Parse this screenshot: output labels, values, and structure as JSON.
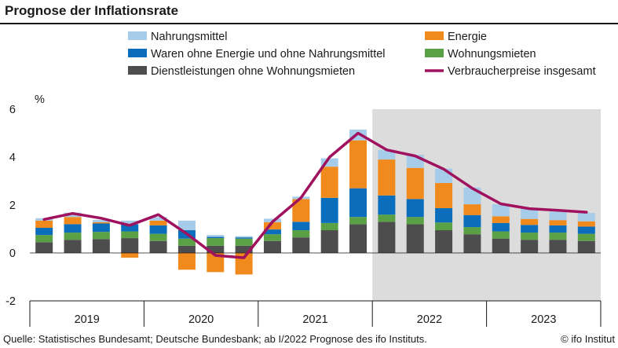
{
  "title": "Prognose der Inflationsrate",
  "footer": {
    "source": "Quelle: Statistisches Bundesamt; Deutsche Bundesbank; ab I/2022 Prognose des ifo Instituts.",
    "brand": "© ifo Institut"
  },
  "chart_data": {
    "type": "bar",
    "stacked": true,
    "unit_label": "%",
    "ylim": [
      -2,
      6
    ],
    "yticks": [
      -2,
      0,
      2,
      4,
      6
    ],
    "grid": false,
    "legend_position": "top",
    "categories": [
      "I/2019",
      "II/2019",
      "III/2019",
      "IV/2019",
      "I/2020",
      "II/2020",
      "III/2020",
      "IV/2020",
      "I/2021",
      "II/2021",
      "III/2021",
      "IV/2021",
      "I/2022",
      "II/2022",
      "III/2022",
      "IV/2022",
      "I/2023",
      "II/2023",
      "III/2023",
      "IV/2023"
    ],
    "year_labels": [
      "2019",
      "2020",
      "2021",
      "2022",
      "2023"
    ],
    "forecast_shading": {
      "from": "I/2022",
      "color": "#dcdcdc"
    },
    "bar_series": [
      {
        "name": "Dienstleistungen ohne Wohnungsmieten",
        "color": "#4d4d4d",
        "values": [
          0.45,
          0.55,
          0.58,
          0.62,
          0.5,
          0.3,
          0.3,
          0.3,
          0.5,
          0.65,
          0.95,
          1.2,
          1.3,
          1.2,
          0.95,
          0.78,
          0.6,
          0.55,
          0.55,
          0.5
        ]
      },
      {
        "name": "Wohnungsmieten",
        "color": "#5aa045",
        "values": [
          0.3,
          0.3,
          0.3,
          0.28,
          0.3,
          0.3,
          0.32,
          0.3,
          0.28,
          0.3,
          0.3,
          0.3,
          0.3,
          0.3,
          0.32,
          0.3,
          0.3,
          0.3,
          0.3,
          0.3
        ]
      },
      {
        "name": "Waren ohne Energie und ohne Nahrungsmittel",
        "color": "#0a6ebd",
        "values": [
          0.3,
          0.35,
          0.35,
          0.3,
          0.35,
          0.35,
          0.05,
          0.05,
          0.2,
          0.35,
          1.05,
          1.2,
          0.8,
          0.75,
          0.6,
          0.5,
          0.35,
          0.32,
          0.3,
          0.3
        ]
      },
      {
        "name": "Energie",
        "color": "#f08a1c",
        "values": [
          0.3,
          0.3,
          0.05,
          -0.2,
          0.2,
          -0.7,
          -0.8,
          -0.9,
          0.3,
          0.95,
          1.3,
          2.0,
          1.5,
          1.3,
          1.05,
          0.45,
          0.28,
          0.25,
          0.22,
          0.22
        ]
      },
      {
        "name": "Nahrungsmittel",
        "color": "#a6cce9",
        "values": [
          0.1,
          0.18,
          0.1,
          0.15,
          0.15,
          0.4,
          0.08,
          0.05,
          0.15,
          0.1,
          0.35,
          0.45,
          0.4,
          0.55,
          0.6,
          0.7,
          0.5,
          0.45,
          0.35,
          0.35
        ]
      }
    ],
    "line_series": {
      "name": "Verbraucherpreise insgesamt",
      "color": "#a0115e",
      "values": [
        1.4,
        1.65,
        1.45,
        1.15,
        1.6,
        0.8,
        -0.1,
        -0.2,
        1.3,
        2.3,
        4.0,
        5.0,
        4.3,
        4.05,
        3.5,
        2.7,
        2.05,
        1.85,
        1.78,
        1.7
      ]
    },
    "legend": [
      {
        "name": "Nahrungsmittel",
        "color": "#a6cce9",
        "kind": "box"
      },
      {
        "name": "Energie",
        "color": "#f08a1c",
        "kind": "box"
      },
      {
        "name": "Waren ohne Energie und ohne Nahrungsmittel",
        "color": "#0a6ebd",
        "kind": "box"
      },
      {
        "name": "Wohnungsmieten",
        "color": "#5aa045",
        "kind": "box"
      },
      {
        "name": "Dienstleistungen ohne Wohnungsmieten",
        "color": "#4d4d4d",
        "kind": "box"
      },
      {
        "name": "Verbraucherpreise insgesamt",
        "color": "#a0115e",
        "kind": "line"
      }
    ],
    "axis_color": "#1a1a1a"
  }
}
